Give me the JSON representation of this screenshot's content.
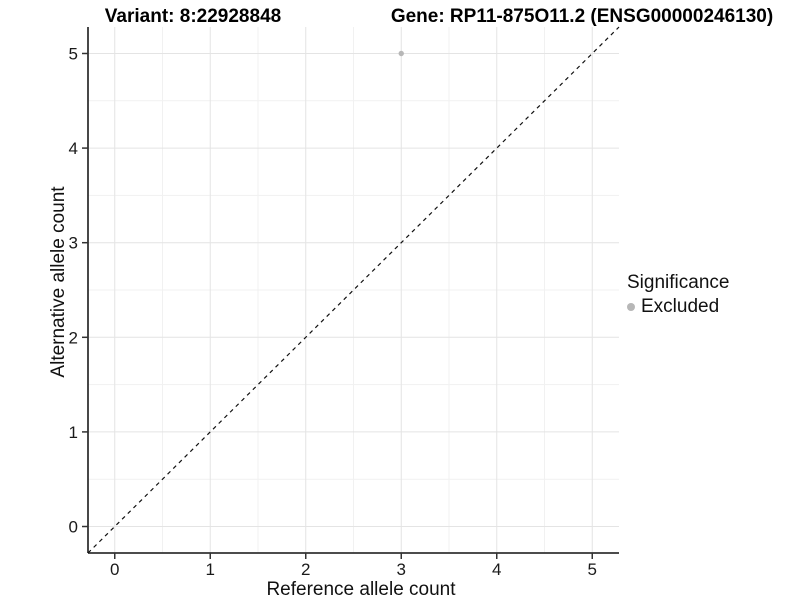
{
  "chart_data": {
    "type": "scatter",
    "title_left": "Variant: 8:22928848",
    "title_right": "Gene: RP11-875O11.2 (ENSG00000246130)",
    "xlabel": "Reference allele count",
    "ylabel": "Alternative allele count",
    "xlim": [
      -0.28,
      5.28
    ],
    "ylim": [
      -0.28,
      5.28
    ],
    "x_ticks": [
      0,
      1,
      2,
      3,
      4,
      5
    ],
    "y_ticks": [
      0,
      1,
      2,
      3,
      4,
      5
    ],
    "grid": {
      "major": true,
      "minor": true,
      "major_color": "#e4e4e4",
      "minor_color": "#f1f1f1"
    },
    "axis_line_color": "#333333",
    "identity_line": {
      "slope": 1,
      "intercept": 0,
      "style": "dashed",
      "color": "#111111"
    },
    "series": [
      {
        "name": "Excluded",
        "color": "#b7b7b7",
        "point_radius": 2.7,
        "points": [
          {
            "x": 3,
            "y": 5
          }
        ]
      }
    ],
    "legend": {
      "title": "Significance",
      "position": "right",
      "items": [
        {
          "label": "Excluded",
          "color": "#b7b7b7"
        }
      ]
    }
  }
}
